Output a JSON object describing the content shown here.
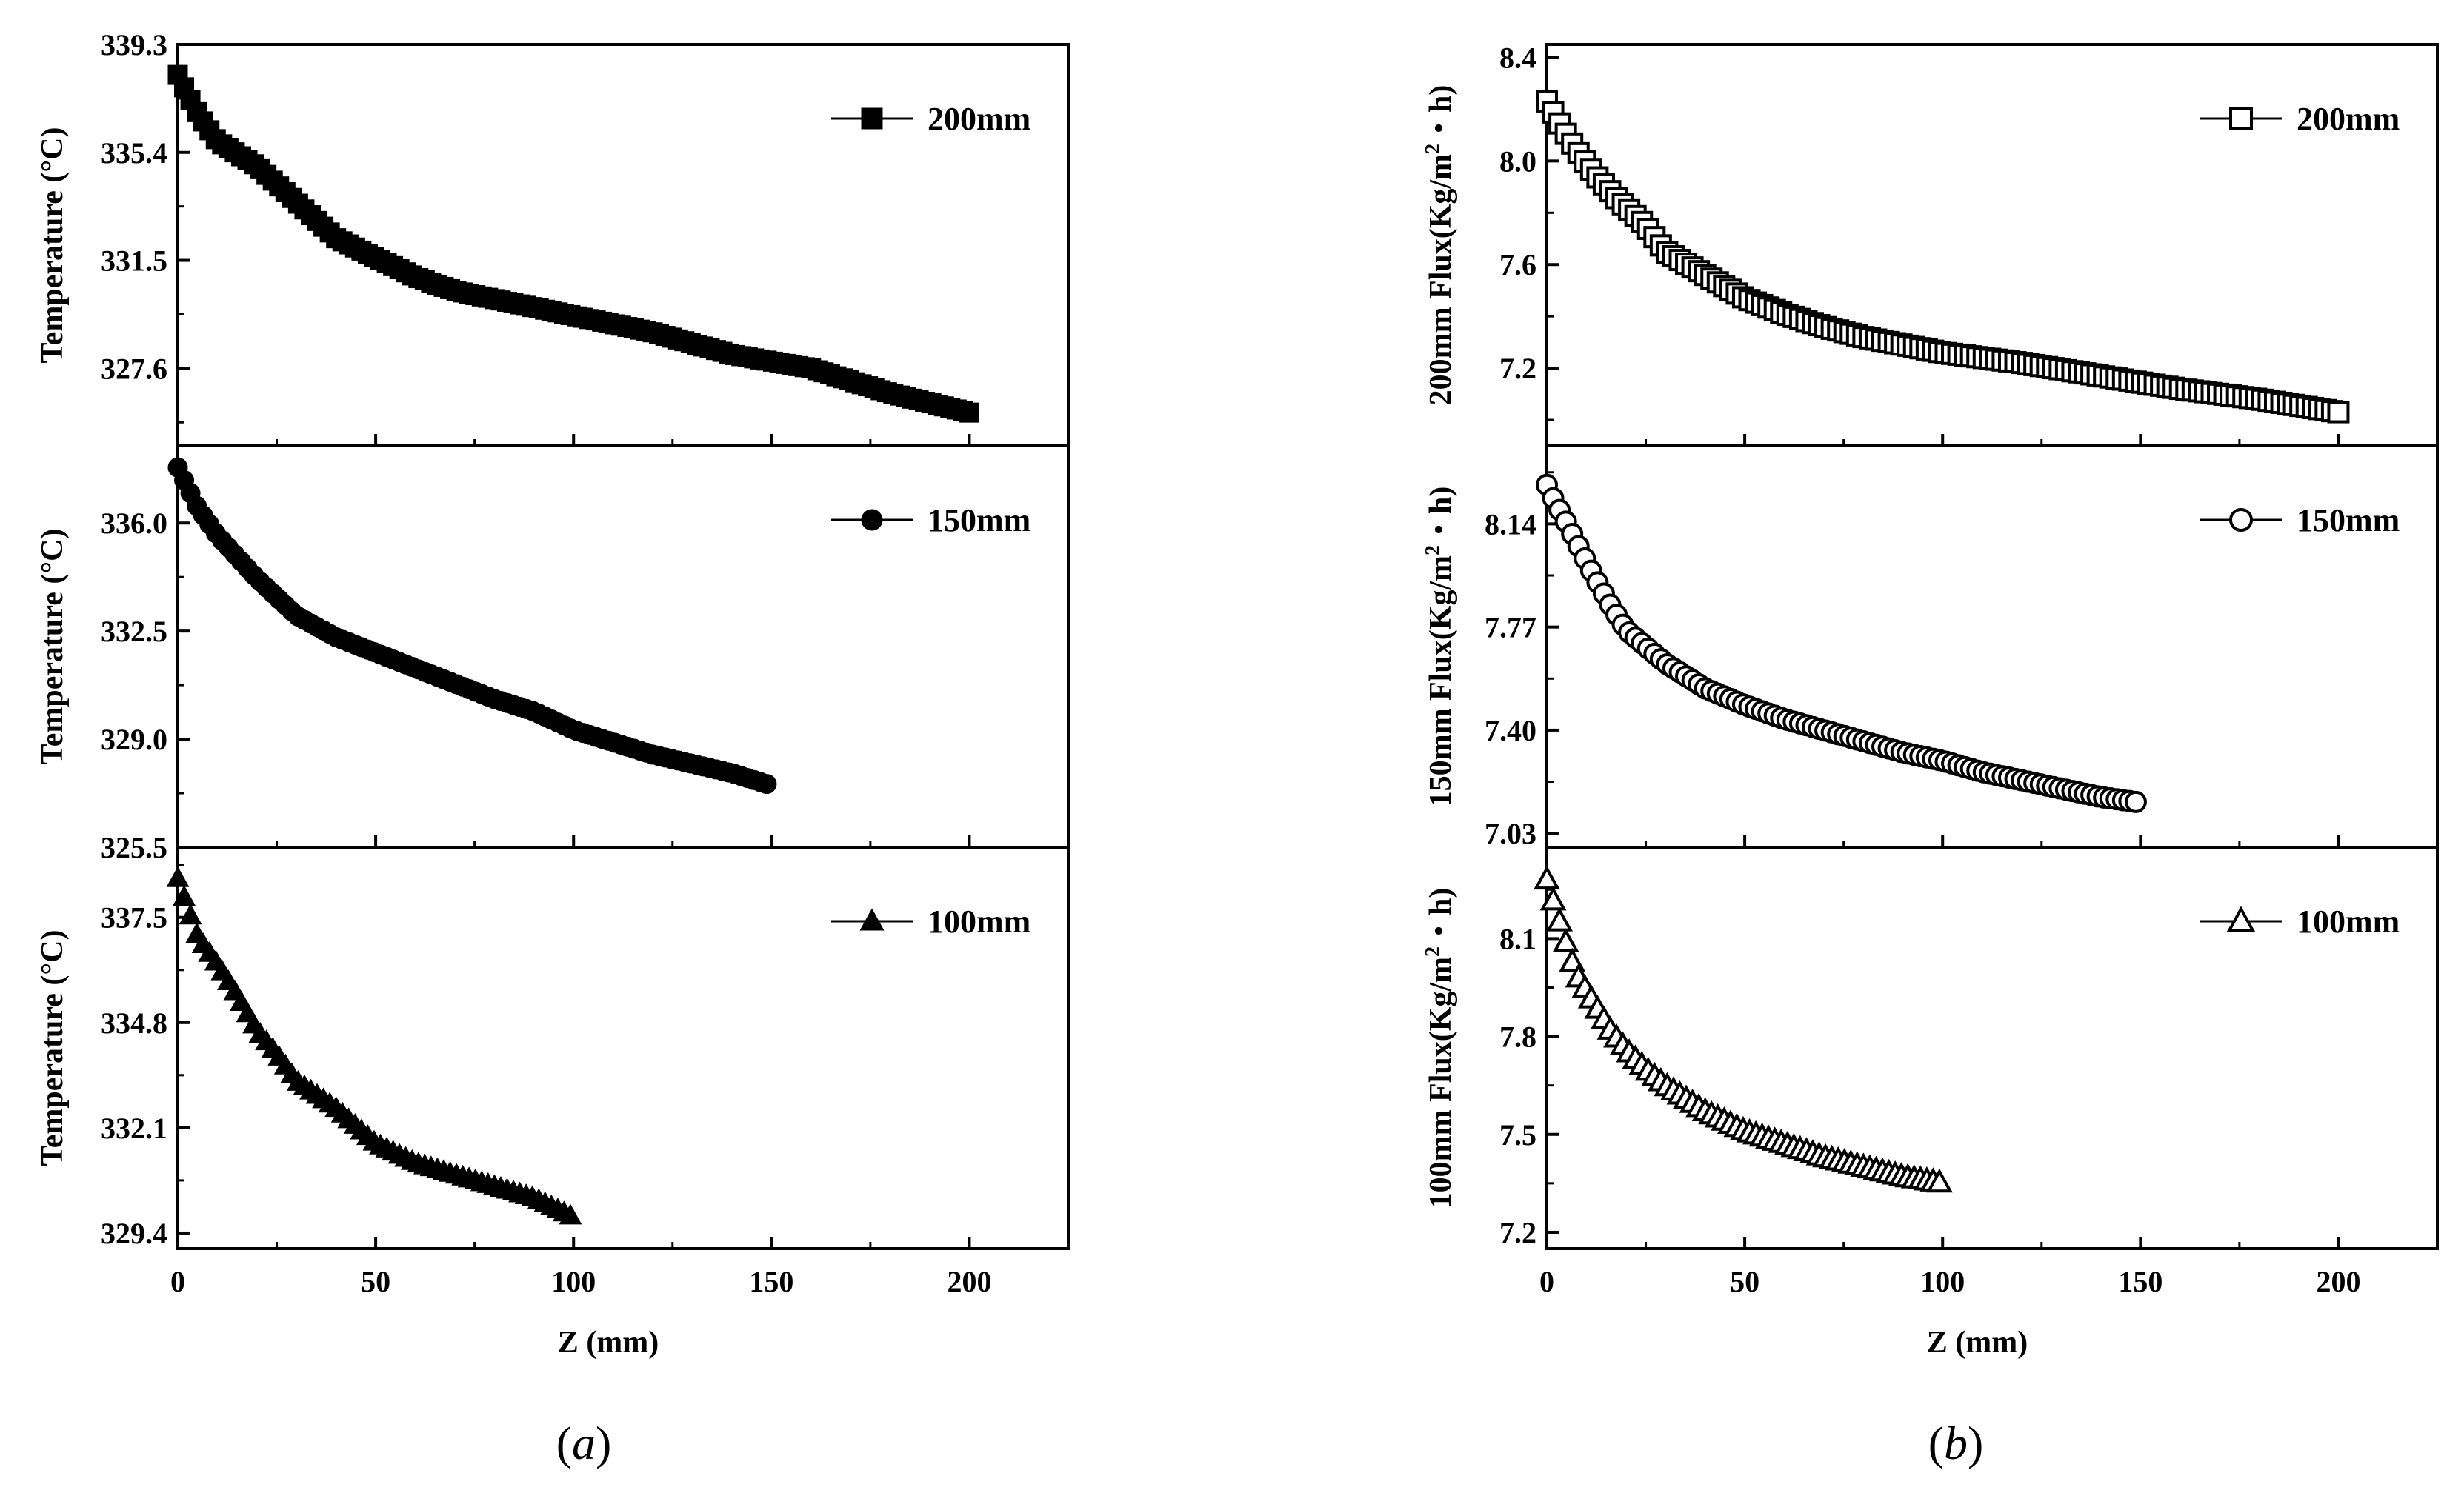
{
  "figure": {
    "panels": [
      {
        "id": "a",
        "label_open": "(",
        "label_letter": "a",
        "label_close": ")"
      },
      {
        "id": "b",
        "label_open": "(",
        "label_letter": "b",
        "label_close": ")"
      }
    ]
  },
  "chart_data": [
    {
      "type": "scatter",
      "panel": "a",
      "title": "",
      "xlabel": "Z (mm)",
      "ylabel": "Temperature (°C)",
      "xlim": [
        0,
        225
      ],
      "ylim": [
        325.5,
        339.5
      ],
      "legend_position": "top-right",
      "x_ticks": [
        "0",
        "50",
        "100",
        "150",
        "200"
      ],
      "shared_x": true,
      "subplots": [
        {
          "series_name": "200mm",
          "marker": "filled-square",
          "ylim": [
            324.8,
            339.3
          ],
          "y_ticks": [
            "339.3",
            "335.4",
            "331.5",
            "327.6"
          ],
          "x_end": 200,
          "points": [
            [
              0,
              338.2
            ],
            [
              5,
              336.8
            ],
            [
              10,
              335.8
            ],
            [
              20,
              334.9
            ],
            [
              30,
              333.6
            ],
            [
              40,
              332.3
            ],
            [
              50,
              331.6
            ],
            [
              60,
              330.9
            ],
            [
              70,
              330.4
            ],
            [
              80,
              330.1
            ],
            [
              100,
              329.5
            ],
            [
              120,
              328.9
            ],
            [
              140,
              328.1
            ],
            [
              160,
              327.6
            ],
            [
              180,
              326.7
            ],
            [
              200,
              326.0
            ]
          ]
        },
        {
          "series_name": "150mm",
          "marker": "filled-circle",
          "ylim": [
            325.5,
            338.5
          ],
          "y_ticks": [
            "336.0",
            "332.5",
            "329.0",
            "325.5"
          ],
          "x_end": 150,
          "points": [
            [
              0,
              337.8
            ],
            [
              5,
              336.5
            ],
            [
              10,
              335.6
            ],
            [
              20,
              334.2
            ],
            [
              30,
              333.0
            ],
            [
              40,
              332.3
            ],
            [
              50,
              331.8
            ],
            [
              60,
              331.3
            ],
            [
              70,
              330.8
            ],
            [
              80,
              330.3
            ],
            [
              90,
              329.9
            ],
            [
              100,
              329.3
            ],
            [
              110,
              328.9
            ],
            [
              120,
              328.5
            ],
            [
              130,
              328.2
            ],
            [
              140,
              327.9
            ],
            [
              150,
              327.5
            ]
          ]
        },
        {
          "series_name": "100mm",
          "marker": "filled-triangle",
          "ylim": [
            329.0,
            339.3
          ],
          "y_ticks": [
            "337.5",
            "334.8",
            "332.1",
            "329.4"
          ],
          "x_end": 100,
          "points": [
            [
              0,
              338.5
            ],
            [
              3,
              337.6
            ],
            [
              5,
              337.0
            ],
            [
              10,
              336.3
            ],
            [
              15,
              335.5
            ],
            [
              20,
              334.6
            ],
            [
              25,
              334.0
            ],
            [
              30,
              333.3
            ],
            [
              40,
              332.6
            ],
            [
              50,
              331.7
            ],
            [
              60,
              331.2
            ],
            [
              70,
              330.9
            ],
            [
              80,
              330.6
            ],
            [
              90,
              330.3
            ],
            [
              100,
              329.8
            ]
          ]
        }
      ]
    },
    {
      "type": "scatter",
      "panel": "b",
      "title": "",
      "xlabel": "Z (mm)",
      "xlim": [
        0,
        225
      ],
      "legend_position": "top-right",
      "x_ticks": [
        "0",
        "50",
        "100",
        "150",
        "200"
      ],
      "shared_x": true,
      "subplots": [
        {
          "series_name": "200mm",
          "ylabel_main": "200mm Flux(Kg/m",
          "ylabel_sup": "2",
          "ylabel_tail": "・h)",
          "marker": "open-square",
          "ylim": [
            6.9,
            8.45
          ],
          "y_ticks": [
            "8.4",
            "8.0",
            "7.6",
            "7.2"
          ],
          "x_end": 200,
          "points": [
            [
              0,
              8.23
            ],
            [
              3,
              8.15
            ],
            [
              5,
              8.1
            ],
            [
              8,
              8.03
            ],
            [
              12,
              7.95
            ],
            [
              18,
              7.85
            ],
            [
              25,
              7.75
            ],
            [
              30,
              7.65
            ],
            [
              40,
              7.56
            ],
            [
              50,
              7.47
            ],
            [
              60,
              7.41
            ],
            [
              70,
              7.36
            ],
            [
              80,
              7.32
            ],
            [
              100,
              7.26
            ],
            [
              120,
              7.22
            ],
            [
              140,
              7.17
            ],
            [
              160,
              7.12
            ],
            [
              180,
              7.08
            ],
            [
              200,
              7.03
            ]
          ]
        },
        {
          "series_name": "150mm",
          "ylabel_main": "150mm Flux(Kg/m",
          "ylabel_sup": "2",
          "ylabel_tail": "・h)",
          "marker": "open-circle",
          "ylim": [
            6.98,
            8.42
          ],
          "y_ticks": [
            "8.14",
            "7.77",
            "7.40",
            "7.03"
          ],
          "x_end": 150,
          "points": [
            [
              0,
              8.28
            ],
            [
              2,
              8.22
            ],
            [
              4,
              8.17
            ],
            [
              8,
              8.06
            ],
            [
              12,
              7.95
            ],
            [
              16,
              7.85
            ],
            [
              20,
              7.76
            ],
            [
              25,
              7.7
            ],
            [
              30,
              7.64
            ],
            [
              40,
              7.55
            ],
            [
              50,
              7.49
            ],
            [
              60,
              7.44
            ],
            [
              70,
              7.4
            ],
            [
              80,
              7.36
            ],
            [
              90,
              7.32
            ],
            [
              100,
              7.29
            ],
            [
              110,
              7.25
            ],
            [
              120,
              7.22
            ],
            [
              130,
              7.19
            ],
            [
              140,
              7.16
            ],
            [
              150,
              7.14
            ]
          ]
        },
        {
          "series_name": "100mm",
          "ylabel_main": "100mm Flux(Kg/m",
          "ylabel_sup": "2",
          "ylabel_tail": "・h)",
          "marker": "open-triangle",
          "ylim": [
            7.15,
            8.38
          ],
          "y_ticks": [
            "8.1",
            "7.8",
            "7.5",
            "7.2"
          ],
          "x_end": 100,
          "points": [
            [
              0,
              8.28
            ],
            [
              2,
              8.2
            ],
            [
              4,
              8.12
            ],
            [
              6,
              8.04
            ],
            [
              8,
              7.98
            ],
            [
              12,
              7.9
            ],
            [
              16,
              7.82
            ],
            [
              20,
              7.76
            ],
            [
              25,
              7.7
            ],
            [
              30,
              7.65
            ],
            [
              40,
              7.57
            ],
            [
              50,
              7.51
            ],
            [
              60,
              7.47
            ],
            [
              70,
              7.43
            ],
            [
              80,
              7.4
            ],
            [
              90,
              7.37
            ],
            [
              100,
              7.35
            ]
          ]
        }
      ]
    }
  ]
}
